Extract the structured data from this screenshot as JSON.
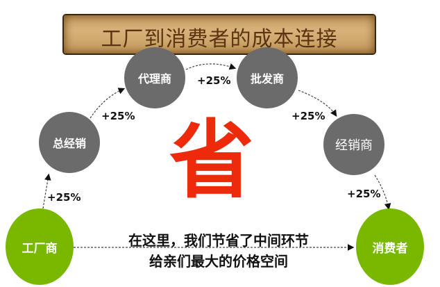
{
  "title": "工厂到消费者的成本连接",
  "nodes": {
    "factory": "工厂商",
    "general": "总经销",
    "agent": "代理商",
    "wholesale": "批发商",
    "dealer": "经销商",
    "consumer": "消费者"
  },
  "markups": [
    "+25%",
    "+25%",
    "+25%",
    "+25%",
    "+25%"
  ],
  "center_char": "省",
  "message": {
    "line1": "在这里，我们节省了中间环节",
    "line2": "给亲们最大的价格空间"
  },
  "colors": {
    "green": "#7ab800",
    "gray": "#6b6b6b",
    "red": "#ee2a0c",
    "banner": "#d6b27a"
  }
}
